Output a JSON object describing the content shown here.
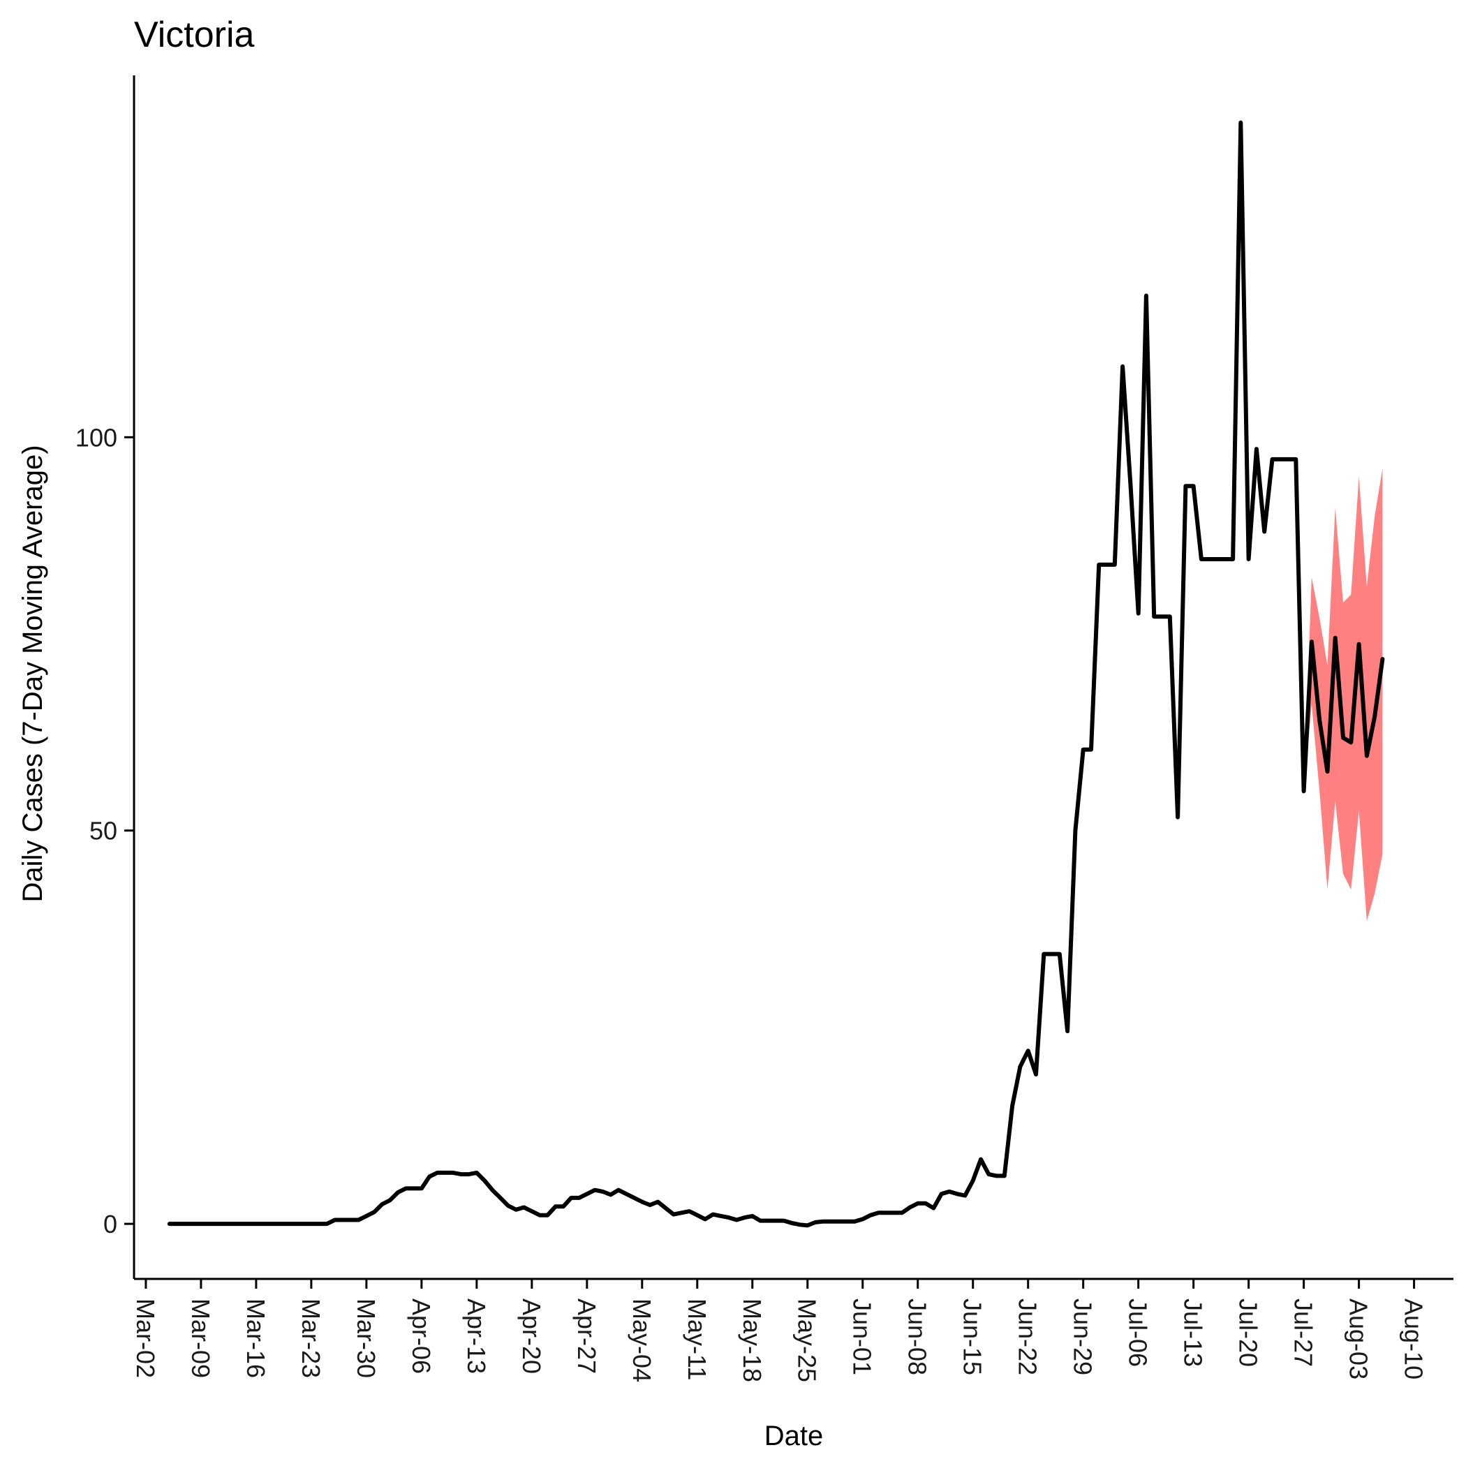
{
  "chart_data": {
    "type": "line",
    "title": "Victoria",
    "xlabel": "Date",
    "ylabel": "Daily Cases (7-Day Moving Average)",
    "y_ticks": [
      0,
      50,
      100
    ],
    "ylim": [
      -7,
      146
    ],
    "x_ticks": [
      "Mar-02",
      "Mar-09",
      "Mar-16",
      "Mar-23",
      "Mar-30",
      "Apr-06",
      "Apr-13",
      "Apr-20",
      "Apr-27",
      "May-04",
      "May-11",
      "May-18",
      "May-25",
      "Jun-01",
      "Jun-08",
      "Jun-15",
      "Jun-22",
      "Jun-29",
      "Jul-06",
      "Jul-13",
      "Jul-20",
      "Jul-27",
      "Aug-03",
      "Aug-10"
    ],
    "x_unit": "days since Mar-02",
    "xlim": [
      -1.5,
      166
    ],
    "series": [
      {
        "name": "observed",
        "color": "#000000",
        "points": [
          [
            3,
            0
          ],
          [
            4,
            0
          ],
          [
            5,
            0
          ],
          [
            6,
            0
          ],
          [
            7,
            0
          ],
          [
            8,
            0
          ],
          [
            9,
            0
          ],
          [
            10,
            0
          ],
          [
            11,
            0
          ],
          [
            12,
            0
          ],
          [
            13,
            0
          ],
          [
            14,
            0
          ],
          [
            15,
            0
          ],
          [
            16,
            0
          ],
          [
            17,
            0
          ],
          [
            18,
            0
          ],
          [
            19,
            0
          ],
          [
            20,
            0
          ],
          [
            21,
            0
          ],
          [
            22,
            0
          ],
          [
            23,
            0
          ],
          [
            24,
            0.5
          ],
          [
            25,
            0.5
          ],
          [
            26,
            0.5
          ],
          [
            27,
            0.5
          ],
          [
            28,
            1
          ],
          [
            29,
            1.5
          ],
          [
            30,
            2.5
          ],
          [
            31,
            3
          ],
          [
            32,
            4
          ],
          [
            33,
            4.5
          ],
          [
            34,
            4.5
          ],
          [
            35,
            4.5
          ],
          [
            36,
            6
          ],
          [
            37,
            6.5
          ],
          [
            38,
            6.5
          ],
          [
            39,
            6.5
          ],
          [
            40,
            6.3
          ],
          [
            41,
            6.3
          ],
          [
            42,
            6.5
          ],
          [
            43,
            5.5
          ],
          [
            44,
            4.3
          ],
          [
            45,
            3.3
          ],
          [
            46,
            2.3
          ],
          [
            47,
            1.8
          ],
          [
            48,
            2.1
          ],
          [
            49,
            1.6
          ],
          [
            50,
            1.1
          ],
          [
            51,
            1.1
          ],
          [
            52,
            2.2
          ],
          [
            53,
            2.2
          ],
          [
            54,
            3.3
          ],
          [
            55,
            3.3
          ],
          [
            56,
            3.8
          ],
          [
            57,
            4.3
          ],
          [
            58,
            4.1
          ],
          [
            59,
            3.7
          ],
          [
            60,
            4.3
          ],
          [
            61,
            3.8
          ],
          [
            62,
            3.3
          ],
          [
            63,
            2.8
          ],
          [
            64,
            2.4
          ],
          [
            65,
            2.8
          ],
          [
            66,
            2.0
          ],
          [
            67,
            1.2
          ],
          [
            68,
            1.4
          ],
          [
            69,
            1.6
          ],
          [
            70,
            1.1
          ],
          [
            71,
            0.6
          ],
          [
            72,
            1.2
          ],
          [
            73,
            1.0
          ],
          [
            74,
            0.8
          ],
          [
            75,
            0.5
          ],
          [
            76,
            0.8
          ],
          [
            77,
            1.0
          ],
          [
            78,
            0.4
          ],
          [
            79,
            0.4
          ],
          [
            80,
            0.4
          ],
          [
            81,
            0.4
          ],
          [
            82,
            0.1
          ],
          [
            83,
            -0.1
          ],
          [
            84,
            -0.2
          ],
          [
            85,
            0.2
          ],
          [
            86,
            0.3
          ],
          [
            87,
            0.3
          ],
          [
            88,
            0.3
          ],
          [
            89,
            0.3
          ],
          [
            90,
            0.3
          ],
          [
            91,
            0.6
          ],
          [
            92,
            1.1
          ],
          [
            93,
            1.4
          ],
          [
            94,
            1.4
          ],
          [
            95,
            1.4
          ],
          [
            96,
            1.4
          ],
          [
            97,
            2.1
          ],
          [
            98,
            2.6
          ],
          [
            99,
            2.6
          ],
          [
            100,
            2.0
          ],
          [
            101,
            3.8
          ],
          [
            102,
            4.1
          ],
          [
            103,
            3.8
          ],
          [
            104,
            3.6
          ],
          [
            105,
            5.5
          ],
          [
            106,
            8.2
          ],
          [
            107,
            6.3
          ],
          [
            108,
            6.1
          ],
          [
            109,
            6.1
          ],
          [
            110,
            15.0
          ],
          [
            111,
            20.0
          ],
          [
            112,
            22.0
          ],
          [
            113,
            19.0
          ],
          [
            114,
            34.3
          ],
          [
            115,
            34.3
          ],
          [
            116,
            34.3
          ],
          [
            117,
            24.5
          ],
          [
            118,
            50.0
          ],
          [
            119,
            60.3
          ],
          [
            120,
            60.3
          ],
          [
            121,
            83.8
          ],
          [
            122,
            83.8
          ],
          [
            123,
            83.8
          ],
          [
            124,
            109.0
          ],
          [
            125,
            94.0
          ],
          [
            126,
            77.6
          ],
          [
            127,
            118.0
          ],
          [
            128,
            77.2
          ],
          [
            129,
            77.2
          ],
          [
            130,
            77.2
          ],
          [
            131,
            51.7
          ],
          [
            132,
            93.8
          ],
          [
            133,
            93.8
          ],
          [
            134,
            84.5
          ],
          [
            135,
            84.5
          ],
          [
            136,
            84.5
          ],
          [
            137,
            84.5
          ],
          [
            138,
            84.5
          ],
          [
            139,
            140.0
          ],
          [
            140,
            84.5
          ],
          [
            141,
            98.5
          ],
          [
            142,
            88.0
          ],
          [
            143,
            97.2
          ],
          [
            144,
            97.2
          ],
          [
            145,
            97.2
          ],
          [
            146,
            97.2
          ],
          [
            147,
            55.0
          ],
          [
            148,
            74.0
          ],
          [
            149,
            64.0
          ],
          [
            150,
            57.5
          ],
          [
            151,
            74.5
          ],
          [
            152,
            61.8
          ],
          [
            153,
            61.2
          ],
          [
            154,
            73.7
          ],
          [
            155,
            59.5
          ],
          [
            156,
            64.5
          ],
          [
            157,
            71.8
          ]
        ]
      }
    ],
    "forecast_band": {
      "color": "#ff8080",
      "points": [
        [
          147,
          55,
          55
        ],
        [
          148,
          66,
          82.2
        ],
        [
          149,
          55,
          77
        ],
        [
          150,
          42.5,
          71
        ],
        [
          151,
          53.7,
          91
        ],
        [
          152,
          44.5,
          79
        ],
        [
          153,
          42.5,
          80
        ],
        [
          154,
          52.5,
          95
        ],
        [
          155,
          38.5,
          81
        ],
        [
          156,
          42,
          90
        ],
        [
          157,
          47,
          96
        ]
      ]
    }
  }
}
